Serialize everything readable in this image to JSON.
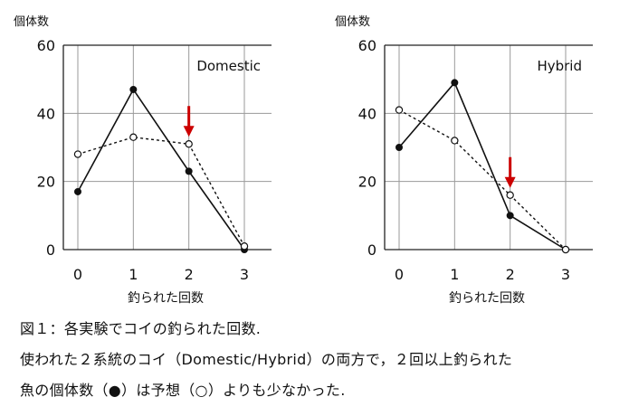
{
  "chart_data": [
    {
      "type": "line",
      "title": "Domestic",
      "xlabel": "釣られた回数",
      "ylabel": "個体数",
      "categories": [
        "0",
        "1",
        "2",
        "3"
      ],
      "ylim": [
        0,
        60
      ],
      "yticks": [
        "0",
        "20",
        "40",
        "60"
      ],
      "grid": true,
      "series": [
        {
          "marker": "filled-circle",
          "line": "solid",
          "values": [
            17,
            47,
            23,
            0
          ]
        },
        {
          "marker": "open-circle",
          "line": "dotted",
          "values": [
            28,
            33,
            31,
            1
          ]
        }
      ],
      "annotation": {
        "kind": "red-arrow",
        "category": "2",
        "value": 31,
        "color": "#cc0000"
      }
    },
    {
      "type": "line",
      "title": "Hybrid",
      "xlabel": "釣られた回数",
      "ylabel": "個体数",
      "categories": [
        "0",
        "1",
        "2",
        "3"
      ],
      "ylim": [
        0,
        60
      ],
      "yticks": [
        "0",
        "20",
        "40",
        "60"
      ],
      "grid": true,
      "series": [
        {
          "marker": "filled-circle",
          "line": "solid",
          "values": [
            30,
            49,
            10,
            0
          ]
        },
        {
          "marker": "open-circle",
          "line": "dotted",
          "values": [
            41,
            32,
            16,
            0
          ]
        }
      ],
      "annotation": {
        "kind": "red-arrow",
        "category": "2",
        "value": 16,
        "color": "#cc0000"
      }
    }
  ],
  "caption": {
    "line1": "図１：各実験でコイの釣られた回数.",
    "line2": "使われた２系統のコイ（Domestic/Hybrid）の両方で，２回以上釣られた",
    "line3": "魚の個体数（●）は予想（○）よりも少なかった."
  }
}
